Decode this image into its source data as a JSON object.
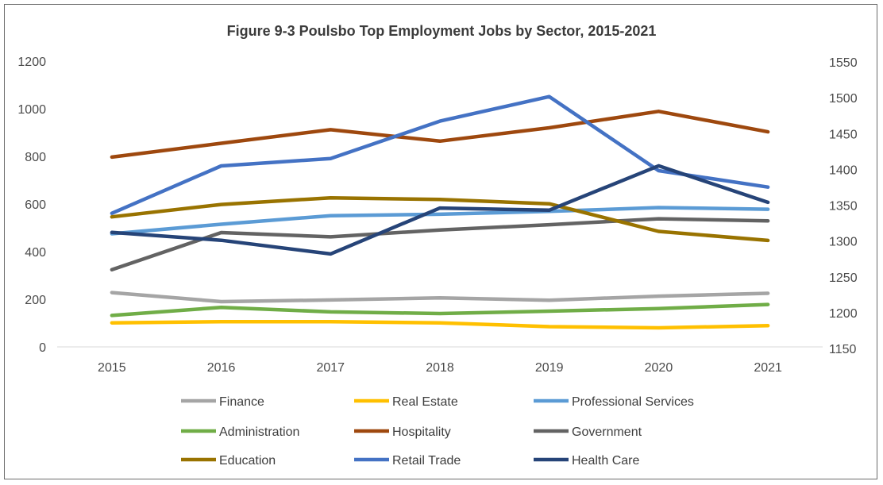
{
  "chart_data": {
    "type": "line",
    "title": "Figure 9-3 Poulsbo Top Employment Jobs by Sector, 2015-2021",
    "x": [
      "2015",
      "2016",
      "2017",
      "2018",
      "2019",
      "2020",
      "2021"
    ],
    "ylim_left": [
      0,
      1200
    ],
    "yticks_left": [
      "0",
      "200",
      "400",
      "600",
      "800",
      "1000",
      "1200"
    ],
    "ylim_right": [
      1150,
      1550
    ],
    "yticks_right": [
      "1150",
      "1200",
      "1250",
      "1300",
      "1350",
      "1400",
      "1450",
      "1500",
      "1550"
    ],
    "grid": false,
    "legend_position": "bottom",
    "series": [
      {
        "name": "Finance",
        "color": "#a5a5a5",
        "axis": "left",
        "values": [
          228,
          190,
          197,
          206,
          196,
          213,
          225
        ]
      },
      {
        "name": "Real Estate",
        "color": "#ffc000",
        "axis": "left",
        "values": [
          101,
          106,
          106,
          101,
          85,
          80,
          89
        ]
      },
      {
        "name": "Professional Services",
        "color": "#5b9bd5",
        "axis": "left",
        "values": [
          475,
          515,
          551,
          557,
          569,
          585,
          578
        ]
      },
      {
        "name": "Administration",
        "color": "#70ad47",
        "axis": "left",
        "values": [
          132,
          166,
          147,
          140,
          150,
          161,
          178
        ]
      },
      {
        "name": "Hospitality",
        "color": "#9e480e",
        "axis": "left",
        "values": [
          797,
          855,
          912,
          864,
          920,
          989,
          903
        ]
      },
      {
        "name": "Government",
        "color": "#636363",
        "axis": "left",
        "values": [
          324,
          480,
          462,
          491,
          513,
          538,
          529
        ]
      },
      {
        "name": "Education",
        "color": "#997300",
        "axis": "left",
        "values": [
          546,
          598,
          626,
          619,
          601,
          485,
          447
        ]
      },
      {
        "name": "Retail Trade",
        "color": "#4472c4",
        "axis": "left",
        "values": [
          561,
          760,
          791,
          948,
          1051,
          740,
          671
        ]
      },
      {
        "name": "Health Care",
        "color": "#264478",
        "axis": "right",
        "values": [
          1312,
          1301,
          1282,
          1346,
          1343,
          1405,
          1354
        ]
      }
    ]
  }
}
